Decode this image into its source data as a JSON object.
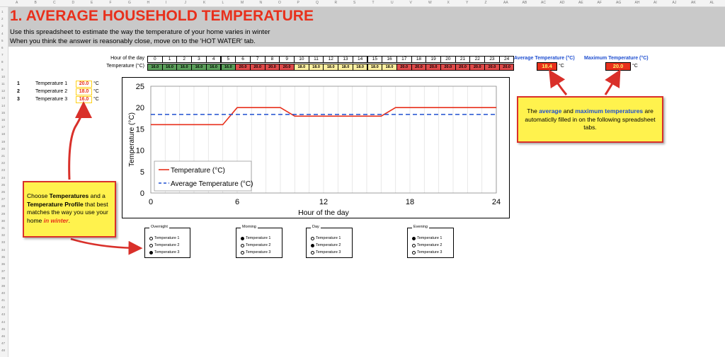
{
  "columns": [
    "A",
    "B",
    "C",
    "D",
    "E",
    "F",
    "G",
    "H",
    "I",
    "J",
    "K",
    "L",
    "M",
    "N",
    "O",
    "P",
    "Q",
    "R",
    "S",
    "T",
    "U",
    "V",
    "W",
    "X",
    "Y",
    "Z",
    "AA",
    "AB",
    "AC",
    "AD",
    "AE",
    "AF",
    "AG",
    "AH",
    "AI",
    "AJ",
    "AK",
    "AL"
  ],
  "rows": [
    "1",
    "2",
    "3",
    "4",
    "5",
    "6",
    "7",
    "8",
    "9",
    "10",
    "11",
    "12",
    "13",
    "14",
    "15",
    "16",
    "17",
    "18",
    "19",
    "20",
    "21",
    "22",
    "23",
    "24",
    "25",
    "26",
    "27",
    "28",
    "29",
    "30",
    "31",
    "32",
    "33",
    "34",
    "35",
    "36",
    "37",
    "38",
    "39",
    "40",
    "41",
    "42",
    "43",
    "44",
    "45",
    "46",
    "47",
    "48"
  ],
  "header": {
    "title": "1. AVERAGE HOUSEHOLD TEMPERATURE",
    "line1": "Use this spreadsheet to estimate the way the temperature of your home varies in winter",
    "line2": "When you think the answer is reasonably close, move on to the 'HOT WATER'  tab."
  },
  "hour_table": {
    "hour_label": "Hour of the day",
    "temp_label": "Temperature (°C)",
    "hours": [
      "0",
      "1",
      "2",
      "3",
      "4",
      "5",
      "6",
      "7",
      "8",
      "9",
      "10",
      "11",
      "12",
      "13",
      "14",
      "15",
      "16",
      "17",
      "18",
      "19",
      "20",
      "21",
      "22",
      "23",
      "24"
    ],
    "temps": [
      "16.0",
      "16.0",
      "16.0",
      "16.0",
      "16.0",
      "16.0",
      "20.0",
      "20.0",
      "20.0",
      "20.0",
      "18.0",
      "18.0",
      "18.0",
      "18.0",
      "18.0",
      "18.0",
      "18.0",
      "20.0",
      "20.0",
      "20.0",
      "20.0",
      "20.0",
      "20.0",
      "20.0",
      "20.0"
    ],
    "colors": {
      "16.0": "#5a9e5a",
      "18.0": "#fff0a0",
      "20.0": "#df4a4a"
    }
  },
  "summary": {
    "avg_label": "Average Temperature (°C)",
    "avg_value": "18.4",
    "max_label": "Maximum Temperature (°C)",
    "max_value": "20.0",
    "unit": "°C"
  },
  "temperatures": [
    {
      "num": "1",
      "label": "Temperature 1",
      "value": "20.0",
      "unit": "°C"
    },
    {
      "num": "2",
      "label": "Temperature 2",
      "value": "18.0",
      "unit": "°C"
    },
    {
      "num": "3",
      "label": "Temperature 3",
      "value": "16.0",
      "unit": "°C"
    }
  ],
  "callout_right": {
    "pre": "The ",
    "avg": "average",
    "mid": " and ",
    "max": "maximum temperatures",
    "post": " are automaticlly filled in on the following spreadsheet tabs."
  },
  "callout_left": {
    "t1": "Choose ",
    "b1": "Temperatures",
    "t2": " and a ",
    "b2": "Temperature Profile",
    "t3": " that best matches the way you use your home ",
    "r1": "in winter",
    "t4": "."
  },
  "chart_data": {
    "type": "line",
    "xlabel": "Hour of the day",
    "ylabel": "Temperature (°C)",
    "xlim": [
      0,
      24
    ],
    "ylim": [
      0,
      25
    ],
    "xticks": [
      0,
      6,
      12,
      18,
      24
    ],
    "yticks": [
      0,
      5,
      10,
      15,
      20,
      25
    ],
    "grid": "vertical",
    "legend": "bottom-left",
    "series": [
      {
        "name": "Temperature (°C)",
        "color": "#e8301c",
        "style": "solid",
        "x": [
          0,
          1,
          2,
          3,
          4,
          5,
          6,
          7,
          8,
          9,
          10,
          11,
          12,
          13,
          14,
          15,
          16,
          17,
          18,
          19,
          20,
          21,
          22,
          23,
          24
        ],
        "y": [
          16,
          16,
          16,
          16,
          16,
          16,
          20,
          20,
          20,
          20,
          18,
          18,
          18,
          18,
          18,
          18,
          18,
          20,
          20,
          20,
          20,
          20,
          20,
          20,
          20
        ]
      },
      {
        "name": "Average Temperature (°C)",
        "color": "#1f4fd0",
        "style": "dashed",
        "x": [
          0,
          24
        ],
        "y": [
          18.4,
          18.4
        ]
      }
    ]
  },
  "profiles": [
    {
      "title": "Overnight",
      "options": [
        "Temperature 1",
        "Temperature 2",
        "Temperature 3"
      ],
      "selected": 2
    },
    {
      "title": "Morning",
      "options": [
        "Temperature 1",
        "Temperature 2",
        "Temperature 3"
      ],
      "selected": 0
    },
    {
      "title": "Day",
      "options": [
        "Temperature 1",
        "Temperature 2",
        "Temperature 3"
      ],
      "selected": 1
    },
    {
      "title": "Evening",
      "options": [
        "Temperature 1",
        "Temperature 2",
        "Temperature 3"
      ],
      "selected": 0
    }
  ]
}
